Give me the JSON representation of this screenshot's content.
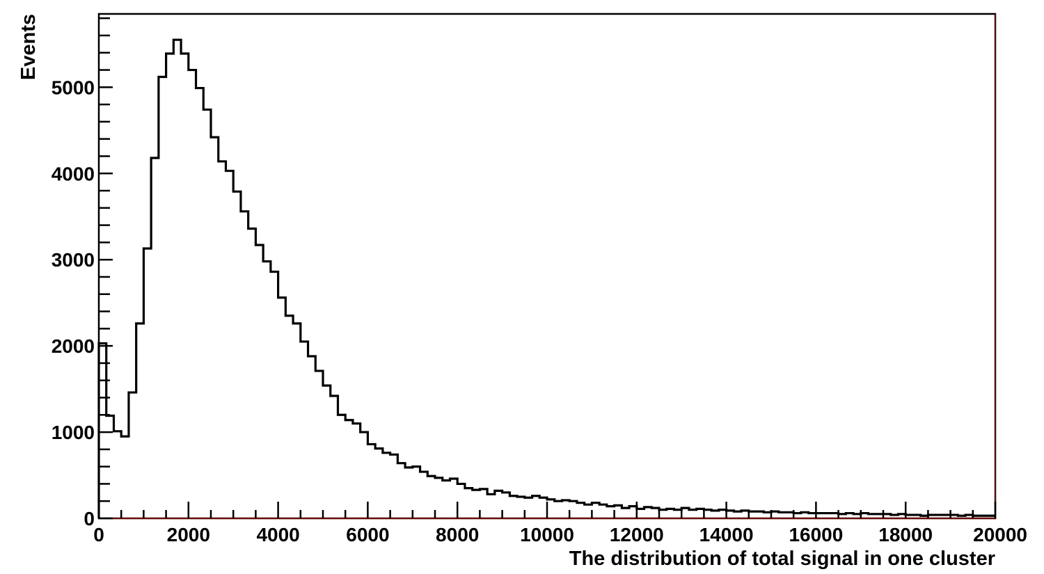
{
  "chart_data": {
    "type": "histogram",
    "xlabel": "The distribution of total signal in one cluster",
    "ylabel": "Events",
    "xlim": [
      0,
      20000
    ],
    "ylim": [
      0,
      5850
    ],
    "x_ticks": [
      0,
      2000,
      4000,
      6000,
      8000,
      10000,
      12000,
      14000,
      16000,
      18000,
      20000
    ],
    "y_ticks": [
      0,
      1000,
      2000,
      3000,
      4000,
      5000
    ],
    "y_minor_step": 200,
    "x_minor_step": 500,
    "bin_width": 166.67,
    "bin_start": 0,
    "values": [
      2030,
      1190,
      1010,
      950,
      1460,
      2260,
      3130,
      4180,
      5120,
      5390,
      5550,
      5390,
      5200,
      4990,
      4740,
      4420,
      4140,
      4030,
      3790,
      3560,
      3360,
      3170,
      2980,
      2860,
      2560,
      2350,
      2260,
      2050,
      1880,
      1710,
      1540,
      1420,
      1200,
      1140,
      1100,
      1000,
      860,
      810,
      760,
      740,
      640,
      590,
      600,
      540,
      490,
      470,
      440,
      460,
      400,
      350,
      330,
      340,
      280,
      320,
      300,
      260,
      250,
      240,
      260,
      240,
      220,
      200,
      210,
      200,
      180,
      160,
      180,
      160,
      140,
      150,
      120,
      140,
      110,
      130,
      120,
      100,
      110,
      100,
      120,
      100,
      110,
      100,
      90,
      100,
      90,
      80,
      90,
      80,
      80,
      70,
      80,
      70,
      70,
      60,
      70,
      60,
      60,
      60,
      60,
      50,
      60,
      50,
      60,
      50,
      50,
      50,
      40,
      50,
      40,
      40,
      30,
      40,
      40,
      40,
      40,
      30,
      40,
      30,
      30,
      30
    ]
  }
}
